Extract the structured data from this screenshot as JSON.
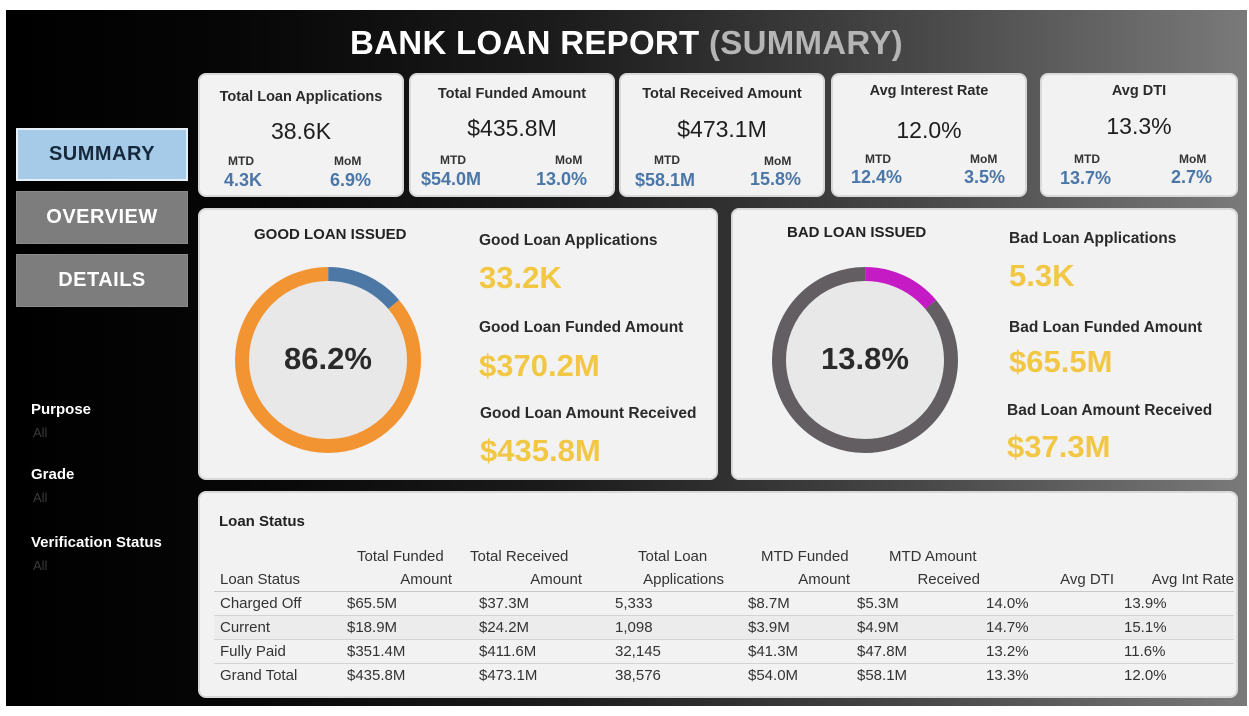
{
  "header": {
    "title_main": "BANK LOAN REPORT",
    "title_sub": "(SUMMARY)"
  },
  "nav": {
    "summary": "SUMMARY",
    "overview": "OVERVIEW",
    "details": "DETAILS"
  },
  "filters": [
    {
      "label": "Purpose",
      "value": "All"
    },
    {
      "label": "Grade",
      "value": "All"
    },
    {
      "label": "Verification Status",
      "value": "All"
    }
  ],
  "kpis": [
    {
      "title": "Total Loan Applications",
      "value": "38.6K",
      "mtd_label": "MTD",
      "mtd": "4.3K",
      "mom_label": "MoM",
      "mom": "6.9%"
    },
    {
      "title": "Total Funded Amount",
      "value": "$435.8M",
      "mtd_label": "MTD",
      "mtd": "$54.0M",
      "mom_label": "MoM",
      "mom": "13.0%"
    },
    {
      "title": "Total Received Amount",
      "value": "$473.1M",
      "mtd_label": "MTD",
      "mtd": "$58.1M",
      "mom_label": "MoM",
      "mom": "15.8%"
    },
    {
      "title": "Avg Interest Rate",
      "value": "12.0%",
      "mtd_label": "MTD",
      "mtd": "12.4%",
      "mom_label": "MoM",
      "mom": "3.5%"
    },
    {
      "title": "Avg DTI",
      "value": "13.3%",
      "mtd_label": "MTD",
      "mtd": "13.7%",
      "mom_label": "MoM",
      "mom": "2.7%"
    }
  ],
  "good": {
    "title": "GOOD LOAN ISSUED",
    "pct_label": "86.2%",
    "pct": 86.2,
    "apps_label": "Good Loan Applications",
    "apps": "33.2K",
    "funded_label": "Good Loan Funded Amount",
    "funded": "$370.2M",
    "received_label": "Good Loan Amount Received",
    "received": "$435.8M",
    "main_color": "#f39433",
    "rest_color": "#4d78a6"
  },
  "bad": {
    "title": "BAD LOAN ISSUED",
    "pct_label": "13.8%",
    "pct": 13.8,
    "apps_label": "Bad Loan Applications",
    "apps": "5.3K",
    "funded_label": "Bad Loan Funded Amount",
    "funded": "$65.5M",
    "received_label": "Bad Loan Amount Received",
    "received": "$37.3M",
    "main_color": "#c51bc5",
    "rest_color": "#625e62"
  },
  "table": {
    "title": "Loan Status",
    "headers": [
      [
        "Loan Status"
      ],
      [
        "Total Funded",
        "Amount"
      ],
      [
        "Total Received",
        "Amount"
      ],
      [
        "Total Loan",
        "Applications"
      ],
      [
        "MTD Funded",
        "Amount"
      ],
      [
        "MTD Amount",
        "Received"
      ],
      [
        "Avg DTI"
      ],
      [
        "Avg Int Rate"
      ]
    ],
    "rows": [
      [
        "Charged Off",
        "$65.5M",
        "$37.3M",
        "5,333",
        "$8.7M",
        "$5.3M",
        "14.0%",
        "13.9%"
      ],
      [
        "Current",
        "$18.9M",
        "$24.2M",
        "1,098",
        "$3.9M",
        "$4.9M",
        "14.7%",
        "15.1%"
      ],
      [
        "Fully Paid",
        "$351.4M",
        "$411.6M",
        "32,145",
        "$41.3M",
        "$47.8M",
        "13.2%",
        "11.6%"
      ],
      [
        "Grand Total",
        "$435.8M",
        "$473.1M",
        "38,576",
        "$54.0M",
        "$58.1M",
        "13.3%",
        "12.0%"
      ]
    ]
  }
}
